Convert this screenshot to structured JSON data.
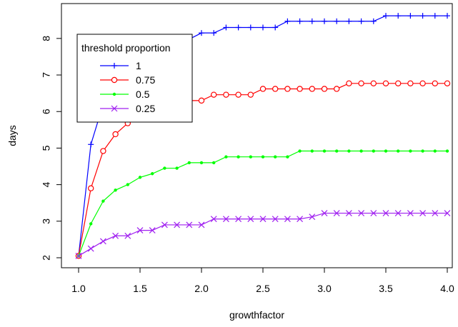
{
  "chart_data": {
    "type": "line",
    "title": "",
    "xlabel": "growthfactor",
    "ylabel": "days",
    "xlim": [
      1.0,
      4.0
    ],
    "ylim": [
      2.0,
      8.7
    ],
    "xticks": [
      "1.0",
      "1.5",
      "2.0",
      "2.5",
      "3.0",
      "3.5",
      "4.0"
    ],
    "yticks": [
      "2",
      "3",
      "4",
      "5",
      "6",
      "7",
      "8"
    ],
    "x": [
      1.0,
      1.1,
      1.2,
      1.3,
      1.4,
      1.5,
      1.6,
      1.7,
      1.8,
      1.9,
      2.0,
      2.1,
      2.2,
      2.3,
      2.4,
      2.5,
      2.6,
      2.7,
      2.8,
      2.9,
      3.0,
      3.1,
      3.2,
      3.3,
      3.4,
      3.5,
      3.6,
      3.7,
      3.8,
      3.9,
      4.0
    ],
    "grid": false,
    "legend": {
      "title": "threshold proportion",
      "position": "top-left"
    },
    "series": [
      {
        "name": "1",
        "color": "#0000ff",
        "marker": "plus",
        "values": [
          2.05,
          5.1,
          6.2,
          6.7,
          7.1,
          7.4,
          7.6,
          7.8,
          7.98,
          7.98,
          8.15,
          8.15,
          8.3,
          8.3,
          8.3,
          8.3,
          8.3,
          8.47,
          8.47,
          8.47,
          8.47,
          8.47,
          8.47,
          8.47,
          8.47,
          8.62,
          8.62,
          8.62,
          8.62,
          8.62,
          8.62
        ]
      },
      {
        "name": "0.75",
        "color": "#ff0000",
        "marker": "circle",
        "values": [
          2.05,
          3.9,
          4.92,
          5.38,
          5.68,
          5.9,
          6.1,
          6.2,
          6.3,
          6.3,
          6.3,
          6.46,
          6.46,
          6.46,
          6.46,
          6.62,
          6.62,
          6.62,
          6.62,
          6.62,
          6.62,
          6.62,
          6.77,
          6.77,
          6.77,
          6.77,
          6.77,
          6.77,
          6.77,
          6.77,
          6.77
        ]
      },
      {
        "name": "0.5",
        "color": "#00ff00",
        "marker": "dot",
        "values": [
          2.05,
          2.93,
          3.55,
          3.85,
          4.0,
          4.2,
          4.3,
          4.45,
          4.45,
          4.6,
          4.6,
          4.6,
          4.76,
          4.76,
          4.76,
          4.76,
          4.76,
          4.76,
          4.92,
          4.92,
          4.92,
          4.92,
          4.92,
          4.92,
          4.92,
          4.92,
          4.92,
          4.92,
          4.92,
          4.92,
          4.92
        ]
      },
      {
        "name": "0.25",
        "color": "#a020f0",
        "marker": "cross",
        "values": [
          2.05,
          2.25,
          2.45,
          2.6,
          2.6,
          2.75,
          2.75,
          2.9,
          2.9,
          2.9,
          2.9,
          3.06,
          3.06,
          3.06,
          3.06,
          3.06,
          3.06,
          3.06,
          3.06,
          3.12,
          3.22,
          3.22,
          3.22,
          3.22,
          3.22,
          3.22,
          3.22,
          3.22,
          3.22,
          3.22,
          3.22
        ]
      }
    ]
  }
}
